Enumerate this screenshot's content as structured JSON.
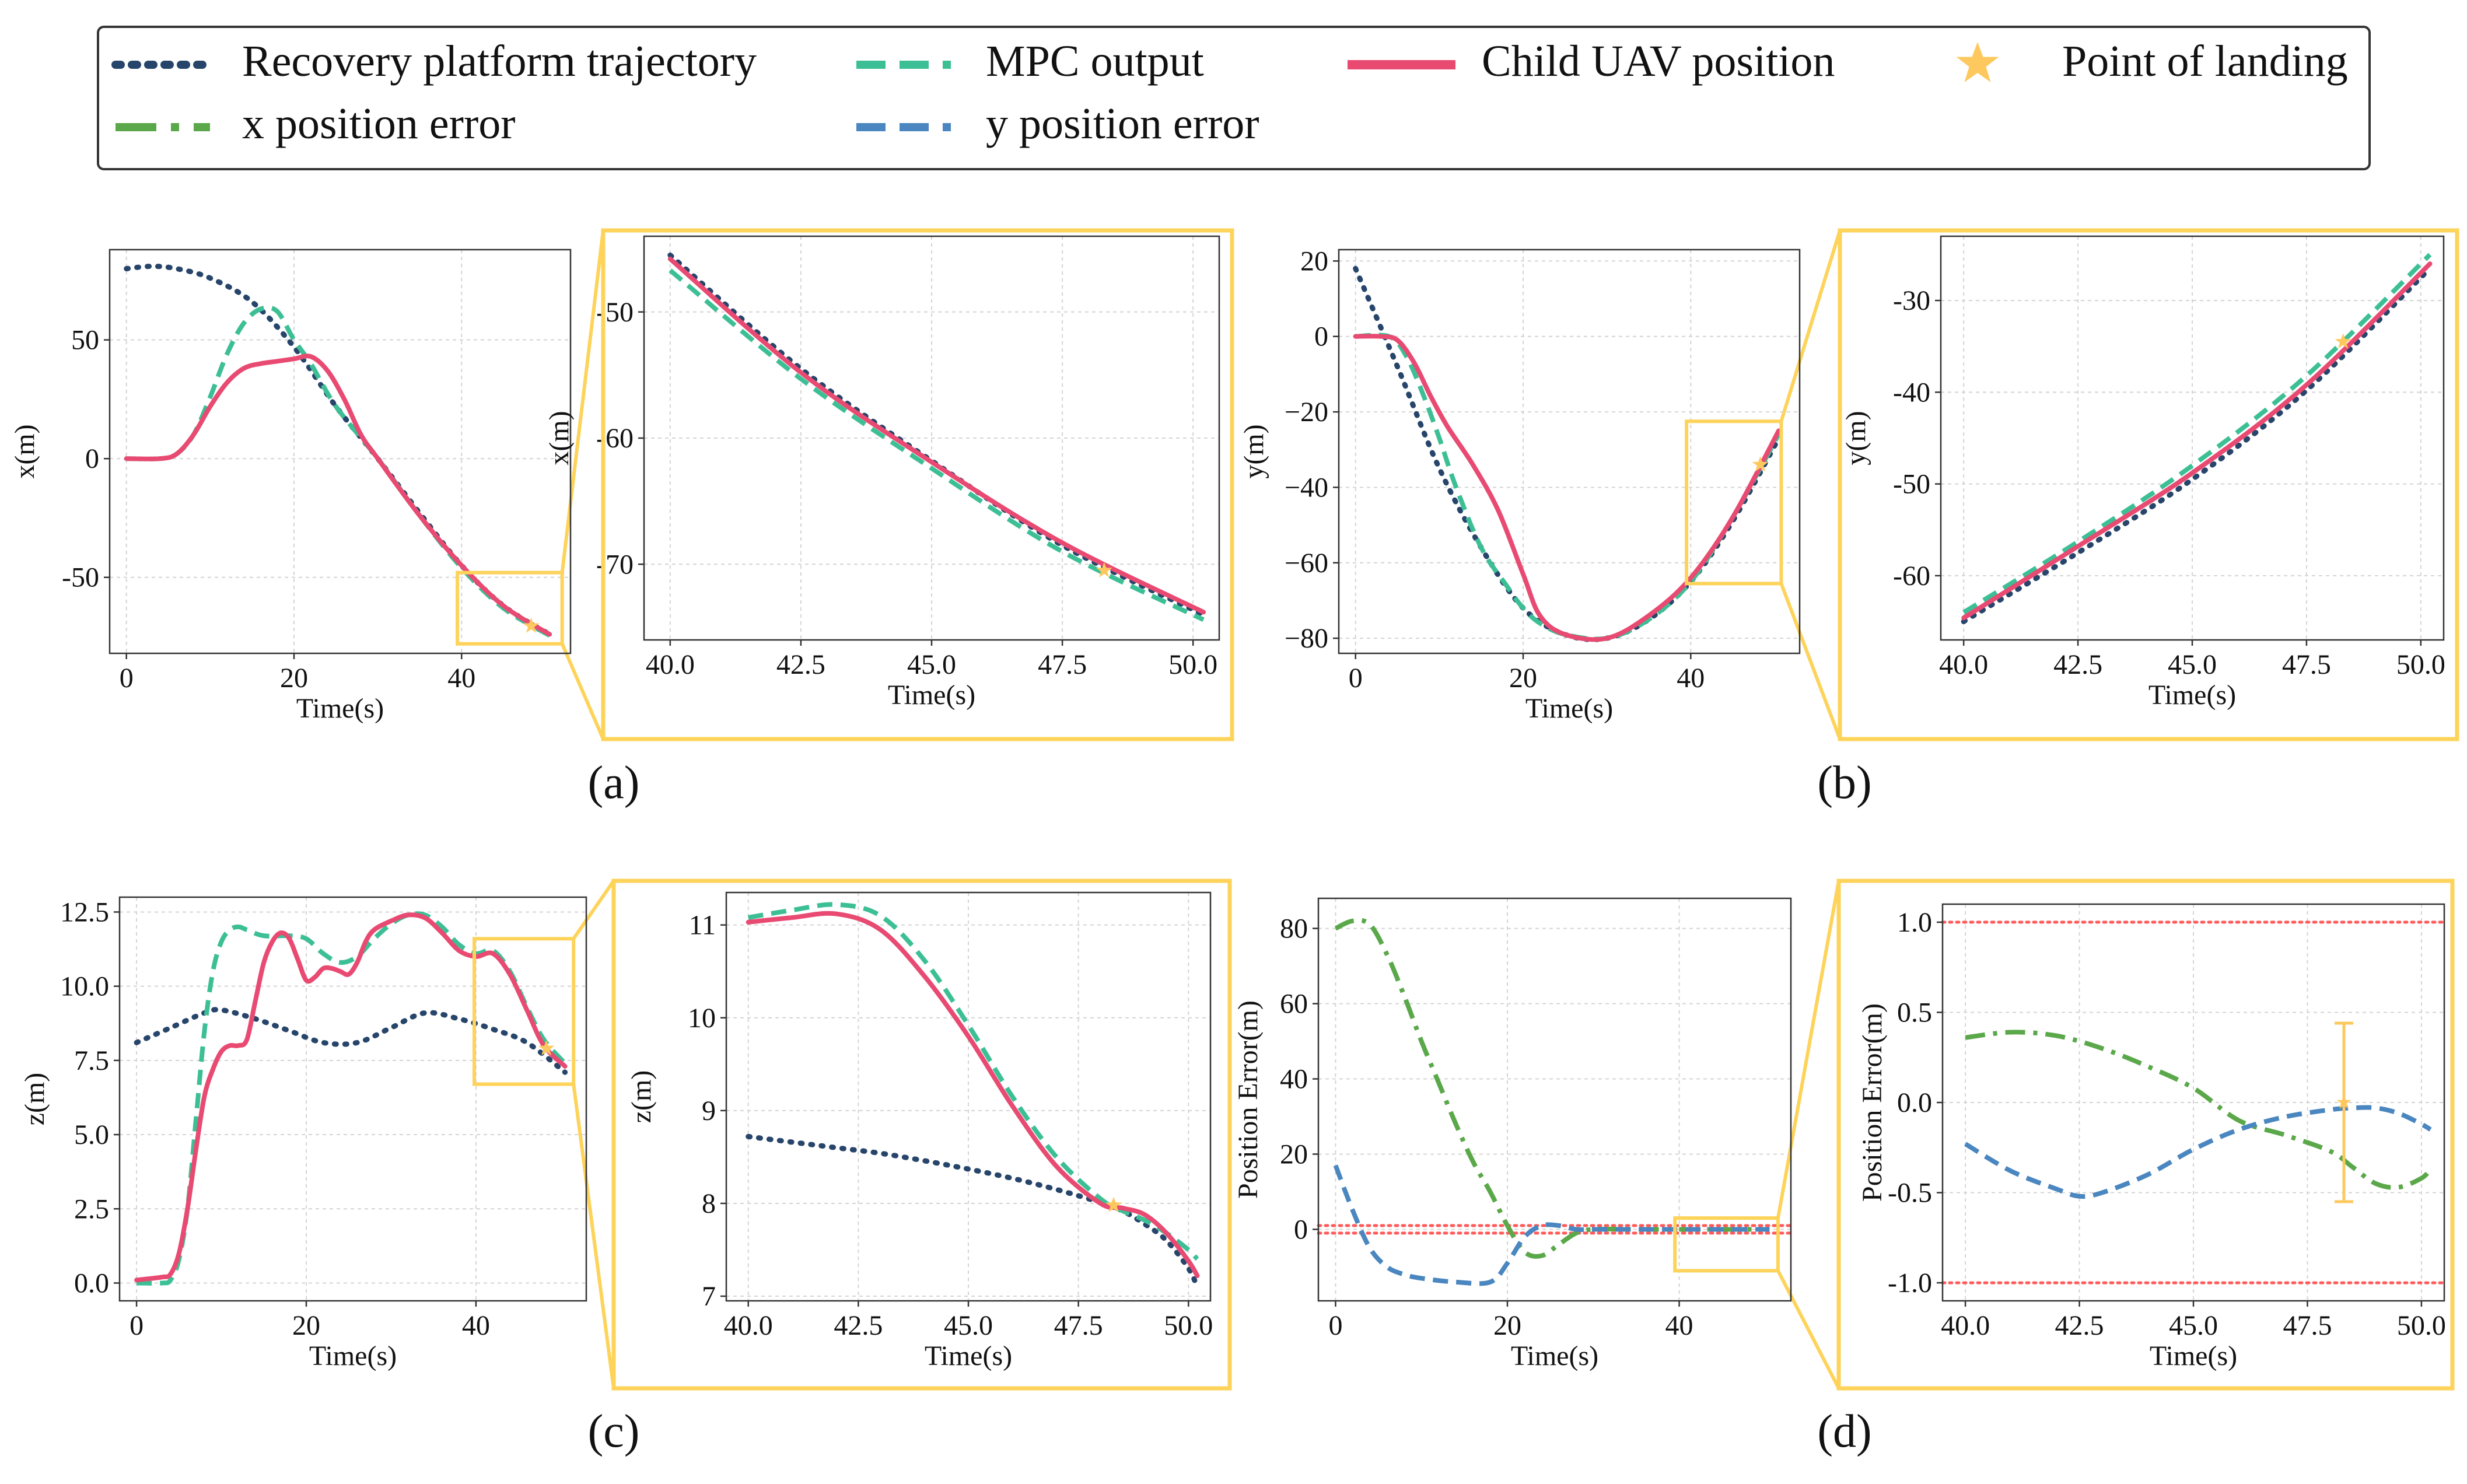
{
  "colors": {
    "platform": "#27456b",
    "mpc": "#3dbf95",
    "child": "#e84a72",
    "xerr": "#5aa84a",
    "yerr": "#4a86bf",
    "landing": "#fdc95f",
    "zoom": "#fdd35a",
    "bound": "#ff5a5a",
    "grid": "#d4d4d4",
    "axis": "#333333"
  },
  "legend": {
    "platform": "Recovery platform trajectory",
    "mpc": "MPC output",
    "child": "Child UAV position",
    "landing": "Point of landing",
    "xerr": "x position error",
    "yerr": "y position error"
  },
  "panel_labels": [
    "(a)",
    "(b)",
    "(c)",
    "(d)"
  ],
  "chart_data": [
    {
      "id": "x_main",
      "type": "line",
      "xlabel": "Time(s)",
      "ylabel": "x(m)",
      "xlim": [
        -2,
        53
      ],
      "ylim": [
        -82,
        88
      ],
      "xticks": [
        0,
        20,
        40
      ],
      "yticks": [
        -50,
        0,
        50
      ],
      "xtick_labels": [
        "0",
        "20",
        "40"
      ],
      "ytick_labels": [
        "-50",
        "0",
        "50"
      ],
      "series": [
        {
          "name": "Recovery platform trajectory",
          "role": "platform",
          "x": [
            0,
            3,
            6,
            10,
            15,
            20,
            25,
            30,
            35,
            40,
            45,
            50.5
          ],
          "y": [
            80,
            81,
            80,
            76,
            66,
            47,
            22,
            0,
            -23,
            -45,
            -62,
            -74
          ]
        },
        {
          "name": "MPC output",
          "role": "mpc",
          "x": [
            0,
            4,
            6,
            8,
            10,
            12,
            14,
            16,
            18,
            20,
            22,
            25,
            30,
            35,
            40,
            45,
            50.5
          ],
          "y": [
            0,
            0,
            2,
            10,
            26,
            44,
            57,
            63,
            62,
            50,
            40,
            22,
            0,
            -24,
            -46,
            -63,
            -74.5
          ]
        },
        {
          "name": "Child UAV position",
          "role": "child",
          "x": [
            0,
            4,
            6,
            8,
            10,
            12,
            14,
            16,
            18,
            20,
            22,
            24,
            26,
            28,
            30,
            35,
            40,
            45,
            50.5
          ],
          "y": [
            0,
            0,
            2,
            10,
            22,
            32,
            38,
            40,
            41,
            42,
            43,
            37,
            25,
            10,
            0,
            -24,
            -45,
            -62,
            -74
          ]
        }
      ],
      "landing": {
        "x": 48.3,
        "y": -70.5
      }
    },
    {
      "id": "x_zoom",
      "type": "line",
      "xlabel": "Time(s)",
      "ylabel": "x(m)",
      "xlim": [
        39.5,
        50.5
      ],
      "ylim": [
        -76,
        -44
      ],
      "xticks": [
        40,
        42.5,
        45,
        47.5,
        50
      ],
      "yticks": [
        -50,
        -60,
        -70
      ],
      "xtick_labels": [
        "40.0",
        "42.5",
        "45.0",
        "47.5",
        "50.0"
      ],
      "ytick_labels": [
        "-50",
        "-60",
        "-70"
      ],
      "series": [
        {
          "name": "Recovery platform trajectory",
          "role": "platform",
          "x": [
            40,
            42.5,
            45,
            47.5,
            50.2
          ],
          "y": [
            -45.5,
            -54.5,
            -61.8,
            -68.5,
            -74
          ]
        },
        {
          "name": "MPC output",
          "role": "mpc",
          "x": [
            40,
            42.5,
            45,
            47.5,
            50.2
          ],
          "y": [
            -46.7,
            -55.3,
            -62.4,
            -69.0,
            -74.4
          ]
        },
        {
          "name": "Child UAV position",
          "role": "child",
          "x": [
            40,
            42.5,
            45,
            47.5,
            50.2
          ],
          "y": [
            -45.8,
            -54.8,
            -61.9,
            -68.3,
            -73.8
          ]
        }
      ],
      "landing": {
        "x": 48.3,
        "y": -70.5
      }
    },
    {
      "id": "y_main",
      "type": "line",
      "xlabel": "Time(s)",
      "ylabel": "y(m)",
      "xlim": [
        -2,
        53
      ],
      "ylim": [
        -84,
        23
      ],
      "xticks": [
        0,
        20,
        40
      ],
      "yticks": [
        20,
        0,
        -20,
        -40,
        -60,
        -80
      ],
      "xtick_labels": [
        "0",
        "20",
        "40"
      ],
      "ytick_labels": [
        "20",
        "0",
        "−20",
        "−40",
        "−60",
        "−80"
      ],
      "series": [
        {
          "name": "Recovery platform trajectory",
          "role": "platform",
          "x": [
            0,
            5,
            10,
            15,
            20,
            25,
            30,
            35,
            40,
            45,
            50.5
          ],
          "y": [
            18,
            -8,
            -35,
            -56,
            -72,
            -79,
            -80,
            -75,
            -65,
            -49,
            -27
          ]
        },
        {
          "name": "MPC output",
          "role": "mpc",
          "x": [
            0,
            4,
            6,
            8,
            10,
            12,
            15,
            18,
            20,
            22,
            25,
            30,
            35,
            40,
            45,
            50.5
          ],
          "y": [
            0,
            0,
            -5,
            -15,
            -27,
            -40,
            -56,
            -66,
            -72,
            -76,
            -79,
            -80,
            -75,
            -65,
            -48,
            -26
          ]
        },
        {
          "name": "Child UAV position",
          "role": "child",
          "x": [
            0,
            3,
            5,
            7,
            9,
            11,
            14,
            17,
            20,
            22,
            25,
            30,
            35,
            40,
            45,
            50.5
          ],
          "y": [
            0,
            0,
            -1,
            -7,
            -16,
            -24,
            -34,
            -46,
            -63,
            -74,
            -79,
            -80,
            -74,
            -64,
            -48,
            -25
          ]
        }
      ],
      "landing": {
        "x": 48.3,
        "y": -34
      }
    },
    {
      "id": "y_zoom",
      "type": "line",
      "xlabel": "Time(s)",
      "ylabel": "y(m)",
      "xlim": [
        39.5,
        50.5
      ],
      "ylim": [
        -67,
        -23
      ],
      "xticks": [
        40,
        42.5,
        45,
        47.5,
        50
      ],
      "yticks": [
        -30,
        -40,
        -50,
        -60
      ],
      "xtick_labels": [
        "40.0",
        "42.5",
        "45.0",
        "47.5",
        "50.0"
      ],
      "ytick_labels": [
        "-30",
        "-40",
        "-50",
        "-60"
      ],
      "series": [
        {
          "name": "Recovery platform trajectory",
          "role": "platform",
          "x": [
            40,
            42.5,
            45,
            47.5,
            50.2
          ],
          "y": [
            -65.0,
            -57.5,
            -49.5,
            -39.8,
            -26.5
          ]
        },
        {
          "name": "MPC output",
          "role": "mpc",
          "x": [
            40,
            42.5,
            45,
            47.5,
            50.2
          ],
          "y": [
            -64.0,
            -56.3,
            -48.0,
            -38.2,
            -25.0
          ]
        },
        {
          "name": "Child UAV position",
          "role": "child",
          "x": [
            40,
            42.5,
            45,
            47.5,
            50.2
          ],
          "y": [
            -64.6,
            -56.8,
            -48.8,
            -39.2,
            -26.0
          ]
        }
      ],
      "landing": {
        "x": 48.3,
        "y": -34.5
      }
    },
    {
      "id": "z_main",
      "type": "line",
      "xlabel": "Time(s)",
      "ylabel": "z(m)",
      "xlim": [
        -2,
        53
      ],
      "ylim": [
        -0.6,
        13
      ],
      "xticks": [
        0,
        20,
        40
      ],
      "yticks": [
        0,
        2.5,
        5,
        7.5,
        10,
        12.5
      ],
      "xtick_labels": [
        "0",
        "20",
        "40"
      ],
      "ytick_labels": [
        "0.0",
        "2.5",
        "5.0",
        "7.5",
        "10.0",
        "12.5"
      ],
      "series": [
        {
          "name": "Recovery platform trajectory",
          "role": "platform",
          "x": [
            0,
            4,
            8,
            10,
            14,
            18,
            22,
            26,
            30,
            34,
            38,
            42,
            46,
            50.5
          ],
          "y": [
            8.1,
            8.6,
            9.1,
            9.2,
            8.9,
            8.5,
            8.1,
            8.1,
            8.6,
            9.1,
            8.9,
            8.55,
            8.1,
            7.1
          ]
        },
        {
          "name": "MPC output",
          "role": "mpc",
          "x": [
            0,
            3,
            4,
            5,
            6,
            7,
            8,
            9,
            10,
            11,
            12,
            13,
            15,
            18,
            20,
            22,
            24,
            26,
            28,
            30,
            32,
            34,
            36,
            38,
            40,
            42,
            44,
            46,
            48,
            50.5
          ],
          "y": [
            0,
            0,
            0.1,
            0.8,
            2.5,
            5.5,
            8.5,
            10.5,
            11.5,
            11.9,
            12.0,
            11.9,
            11.7,
            11.7,
            11.6,
            11.1,
            10.8,
            11.0,
            11.6,
            12.1,
            12.4,
            12.4,
            12.0,
            11.4,
            11.1,
            11.2,
            10.5,
            9.3,
            8.2,
            7.4
          ]
        },
        {
          "name": "Child UAV position",
          "role": "child",
          "x": [
            0,
            3,
            4,
            5,
            6,
            7,
            8,
            9,
            10,
            11,
            12,
            13,
            14,
            15,
            16,
            17,
            18,
            19,
            20,
            21,
            22,
            23,
            24,
            25,
            26,
            27,
            28,
            30,
            32,
            34,
            36,
            38,
            40,
            42,
            44,
            46,
            48,
            50.5
          ],
          "y": [
            0.1,
            0.2,
            0.3,
            1.0,
            2.5,
            4.5,
            6.3,
            7.2,
            7.8,
            8.0,
            8.0,
            8.2,
            9.5,
            10.8,
            11.5,
            11.8,
            11.6,
            10.9,
            10.2,
            10.3,
            10.6,
            10.6,
            10.5,
            10.4,
            10.8,
            11.5,
            11.9,
            12.2,
            12.4,
            12.3,
            11.8,
            11.2,
            11.0,
            11.1,
            10.4,
            9.2,
            8.0,
            7.3
          ]
        }
      ],
      "landing": {
        "x": 48.3,
        "y": 7.9
      }
    },
    {
      "id": "z_zoom",
      "type": "line",
      "xlabel": "Time(s)",
      "ylabel": "z(m)",
      "xlim": [
        39.5,
        50.5
      ],
      "ylim": [
        6.95,
        11.35
      ],
      "xticks": [
        40,
        42.5,
        45,
        47.5,
        50
      ],
      "yticks": [
        7,
        8,
        9,
        10,
        11
      ],
      "xtick_labels": [
        "40.0",
        "42.5",
        "45.0",
        "47.5",
        "50.0"
      ],
      "ytick_labels": [
        "7",
        "8",
        "9",
        "10",
        "11"
      ],
      "series": [
        {
          "name": "Recovery platform trajectory",
          "role": "platform",
          "x": [
            40,
            41,
            42,
            43,
            44,
            45,
            46,
            47,
            48,
            48.5,
            49,
            49.5,
            50,
            50.2
          ],
          "y": [
            8.72,
            8.66,
            8.6,
            8.54,
            8.46,
            8.37,
            8.27,
            8.15,
            8.01,
            7.92,
            7.78,
            7.6,
            7.3,
            7.1
          ]
        },
        {
          "name": "MPC output",
          "role": "mpc",
          "x": [
            40,
            41,
            42,
            43,
            44,
            45,
            46,
            47,
            48,
            48.5,
            49,
            49.5,
            50,
            50.2
          ],
          "y": [
            11.08,
            11.16,
            11.22,
            11.1,
            10.62,
            9.92,
            9.15,
            8.5,
            8.05,
            7.92,
            7.82,
            7.68,
            7.5,
            7.4
          ]
        },
        {
          "name": "Child UAV position",
          "role": "child",
          "x": [
            40,
            41,
            42,
            43,
            44,
            45,
            46,
            47,
            48,
            48.5,
            49,
            49.5,
            50,
            50.2
          ],
          "y": [
            11.03,
            11.08,
            11.12,
            10.95,
            10.45,
            9.8,
            9.05,
            8.4,
            8.0,
            7.95,
            7.88,
            7.68,
            7.38,
            7.22
          ]
        }
      ],
      "landing": {
        "x": 48.3,
        "y": 7.98
      }
    },
    {
      "id": "err_main",
      "type": "line",
      "xlabel": "Time(s)",
      "ylabel": "Position Error(m)",
      "xlim": [
        -2,
        53
      ],
      "ylim": [
        -19,
        88
      ],
      "xticks": [
        0,
        20,
        40
      ],
      "yticks": [
        80,
        60,
        40,
        20,
        0
      ],
      "xtick_labels": [
        "0",
        "20",
        "40"
      ],
      "ytick_labels": [
        "80",
        "60",
        "40",
        "20",
        "0"
      ],
      "bounds": [
        1,
        -1
      ],
      "series": [
        {
          "name": "x position error",
          "role": "xerr",
          "x": [
            0,
            2,
            4,
            6,
            8,
            10,
            12,
            14,
            16,
            18,
            20,
            22,
            24,
            26,
            28,
            30,
            35,
            40,
            45,
            50.5
          ],
          "y": [
            80,
            82,
            81,
            73,
            62,
            50,
            39,
            28,
            18,
            10,
            1,
            -6,
            -7,
            -4,
            -1,
            0,
            0,
            0,
            0,
            0
          ]
        },
        {
          "name": "y position error",
          "role": "yerr",
          "x": [
            0,
            2,
            4,
            6,
            8,
            10,
            14,
            18,
            20,
            22,
            24,
            26,
            28,
            30,
            35,
            40,
            45,
            50.5
          ],
          "y": [
            17,
            5,
            -5,
            -10,
            -12,
            -13,
            -14,
            -14,
            -9,
            -2,
            1,
            1,
            0,
            0,
            0,
            0,
            0,
            0
          ]
        }
      ]
    },
    {
      "id": "err_zoom",
      "type": "line",
      "xlabel": "Time(s)",
      "ylabel": "Position Error(m)",
      "xlim": [
        39.5,
        50.5
      ],
      "ylim": [
        -1.1,
        1.1
      ],
      "xticks": [
        40,
        42.5,
        45,
        47.5,
        50
      ],
      "yticks": [
        1,
        0.5,
        0,
        -0.5,
        -1
      ],
      "xtick_labels": [
        "40.0",
        "42.5",
        "45.0",
        "47.5",
        "50.0"
      ],
      "ytick_labels": [
        "1.0",
        "0.5",
        "0.0",
        "-0.5",
        "-1.0"
      ],
      "bounds": [
        1,
        -1
      ],
      "series": [
        {
          "name": "x position error",
          "role": "xerr",
          "x": [
            40,
            41,
            42,
            43,
            44,
            45,
            46,
            47,
            48,
            48.5,
            49,
            49.5,
            50,
            50.2
          ],
          "y": [
            0.36,
            0.39,
            0.37,
            0.3,
            0.2,
            0.08,
            -0.1,
            -0.18,
            -0.27,
            -0.36,
            -0.45,
            -0.47,
            -0.42,
            -0.37
          ]
        },
        {
          "name": "y position error",
          "role": "yerr",
          "x": [
            40,
            41,
            42,
            42.5,
            43,
            44,
            45,
            46,
            47,
            48,
            48.5,
            49,
            49.5,
            50,
            50.2
          ],
          "y": [
            -0.23,
            -0.38,
            -0.48,
            -0.52,
            -0.5,
            -0.4,
            -0.26,
            -0.15,
            -0.08,
            -0.04,
            -0.03,
            -0.03,
            -0.06,
            -0.12,
            -0.15
          ]
        }
      ],
      "errorbar": {
        "x": 48.3,
        "y": 0.0,
        "ymin": -0.55,
        "ymax": 0.44
      }
    }
  ]
}
